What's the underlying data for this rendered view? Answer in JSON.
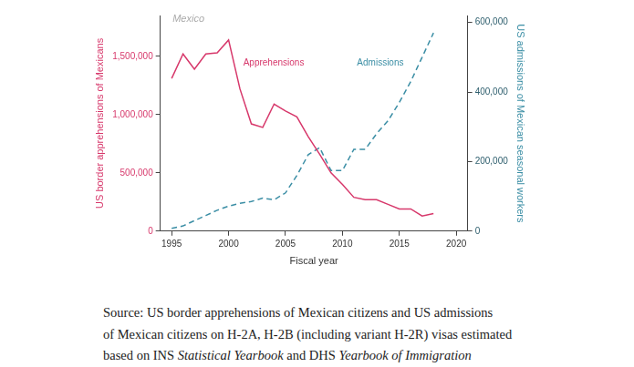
{
  "chart_data": {
    "type": "line",
    "title": "Mexico",
    "x_label": "Fiscal year",
    "y_label": "US border apprehensions of Mexicans",
    "y2_label": "US admissions of Mexican seasonal workers",
    "x": [
      1995,
      1996,
      1997,
      1998,
      1999,
      2000,
      2001,
      2002,
      2003,
      2004,
      2005,
      2006,
      2007,
      2008,
      2009,
      2010,
      2011,
      2012,
      2013,
      2014,
      2015,
      2016,
      2017,
      2018
    ],
    "series": [
      {
        "name": "Apprehensions",
        "color": "#d7386b",
        "line_style": "solid",
        "values": [
          1310000,
          1520000,
          1390000,
          1520000,
          1530000,
          1640000,
          1220000,
          920000,
          890000,
          1090000,
          1030000,
          980000,
          810000,
          660000,
          500000,
          400000,
          290000,
          270000,
          270000,
          230000,
          190000,
          190000,
          130000,
          150000
        ]
      },
      {
        "name": "Admissions",
        "color": "#3b8ea5",
        "line_style": "dashed",
        "axis": "y2",
        "values": [
          8000,
          15000,
          30000,
          45000,
          60000,
          72000,
          80000,
          85000,
          95000,
          90000,
          110000,
          160000,
          220000,
          240000,
          174000,
          174000,
          235000,
          235000,
          280000,
          317000,
          370000,
          430000,
          500000,
          570000
        ]
      }
    ],
    "xlim": [
      1994,
      2021
    ],
    "xticks": [
      1995,
      2000,
      2005,
      2010,
      2015,
      2020
    ],
    "ylim": [
      0,
      1850000
    ],
    "yticks": [
      0,
      {
        "value": 500000,
        "label": "500,000"
      },
      {
        "value": 1000000,
        "label": "1,000,000"
      },
      {
        "value": 1500000,
        "label": "1,500,000"
      }
    ],
    "y2lim": [
      0,
      620000
    ],
    "y2ticks": [
      0,
      {
        "value": 200000,
        "label": "200,000"
      },
      {
        "value": 400000,
        "label": "400,000"
      },
      {
        "value": 600000,
        "label": "600,000"
      }
    ],
    "grid": false
  },
  "source": [
    [
      "Source: US border apprehensions of Mexican citizens and US admissions"
    ],
    [
      "of Mexican citizens on H-2A, H-2B (including variant H-2R) visas estimated"
    ],
    [
      "based on INS ",
      "Statistical Yearbook",
      " and DHS ",
      "Yearbook of Immigration"
    ]
  ]
}
